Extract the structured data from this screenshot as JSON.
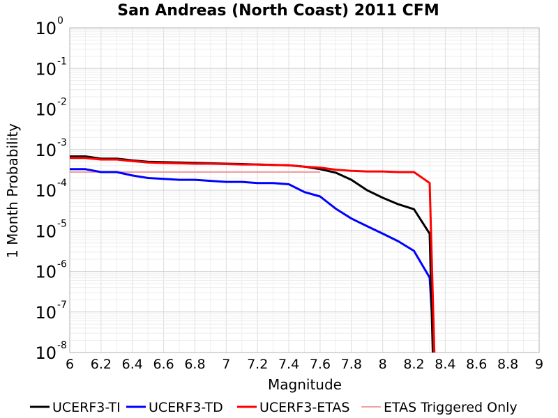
{
  "chart_data": {
    "type": "line",
    "title": "San Andreas (North Coast) 2011 CFM",
    "xlabel": "Magnitude",
    "ylabel": "1 Month Probability",
    "xlim": [
      6,
      9
    ],
    "ylim": [
      1e-08,
      1
    ],
    "yscale": "log",
    "grid": true,
    "legend_position": "bottom",
    "x_ticks": [
      "6",
      "6.2",
      "6.4",
      "6.6",
      "6.8",
      "7",
      "7.2",
      "7.4",
      "7.6",
      "7.8",
      "8",
      "8.2",
      "8.4",
      "8.6",
      "8.8",
      "9"
    ],
    "y_tick_exponents": [
      "0",
      "-1",
      "-2",
      "-3",
      "-4",
      "-5",
      "-6",
      "-7",
      "-8"
    ],
    "y_tick_base": "10",
    "series": [
      {
        "name": "UCERF3-TI",
        "color": "#000000",
        "width": 3,
        "x": [
          6.0,
          6.1,
          6.2,
          6.3,
          6.4,
          6.5,
          6.6,
          6.7,
          6.8,
          6.9,
          7.0,
          7.1,
          7.2,
          7.3,
          7.4,
          7.5,
          7.6,
          7.7,
          7.8,
          7.9,
          8.0,
          8.1,
          8.2,
          8.3,
          8.32
        ],
        "y": [
          0.00068,
          0.00068,
          0.0006,
          0.0006,
          0.00054,
          0.0005,
          0.00049,
          0.00048,
          0.00047,
          0.00046,
          0.00045,
          0.00044,
          0.00043,
          0.00042,
          0.00041,
          0.00038,
          0.00033,
          0.00027,
          0.00018,
          0.0001,
          6.5e-05,
          4.5e-05,
          3.4e-05,
          8.5e-06,
          1e-08
        ]
      },
      {
        "name": "UCERF3-TD",
        "color": "#0000ff",
        "width": 3,
        "x": [
          6.0,
          6.1,
          6.2,
          6.3,
          6.4,
          6.5,
          6.6,
          6.7,
          6.8,
          6.9,
          7.0,
          7.1,
          7.2,
          7.3,
          7.4,
          7.5,
          7.6,
          7.7,
          7.8,
          7.9,
          8.0,
          8.1,
          8.2,
          8.3,
          8.33
        ],
        "y": [
          0.00033,
          0.00033,
          0.00028,
          0.00028,
          0.00023,
          0.0002,
          0.00019,
          0.00018,
          0.00018,
          0.00017,
          0.00016,
          0.00016,
          0.00015,
          0.00015,
          0.00014,
          9e-05,
          7e-05,
          3.5e-05,
          2e-05,
          1.3e-05,
          8.5e-06,
          5.5e-06,
          3.2e-06,
          7e-07,
          1e-08
        ]
      },
      {
        "name": "UCERF3-ETAS",
        "color": "#ff0000",
        "width": 3,
        "x": [
          6.0,
          6.1,
          6.2,
          6.3,
          6.4,
          6.5,
          6.6,
          6.7,
          6.8,
          6.9,
          7.0,
          7.1,
          7.2,
          7.3,
          7.4,
          7.5,
          7.6,
          7.7,
          7.8,
          7.9,
          8.0,
          8.1,
          8.2,
          8.3,
          8.33
        ],
        "y": [
          0.00062,
          0.00062,
          0.00057,
          0.00057,
          0.00052,
          0.00048,
          0.00047,
          0.00046,
          0.00045,
          0.00045,
          0.00044,
          0.00043,
          0.00043,
          0.00042,
          0.00041,
          0.00038,
          0.00036,
          0.00032,
          0.0003,
          0.00029,
          0.00029,
          0.00028,
          0.00028,
          0.00015,
          1e-08
        ]
      },
      {
        "name": "ETAS Triggered Only",
        "color": "#f08080",
        "width": 1.5,
        "x": [
          6.0,
          7.6
        ],
        "y": [
          0.00028,
          0.00028
        ]
      },
      {
        "name": "",
        "color": "#800000",
        "width": 1,
        "x": [
          6.0,
          7.6
        ],
        "y": [
          0.00028,
          0.00028
        ]
      }
    ]
  }
}
